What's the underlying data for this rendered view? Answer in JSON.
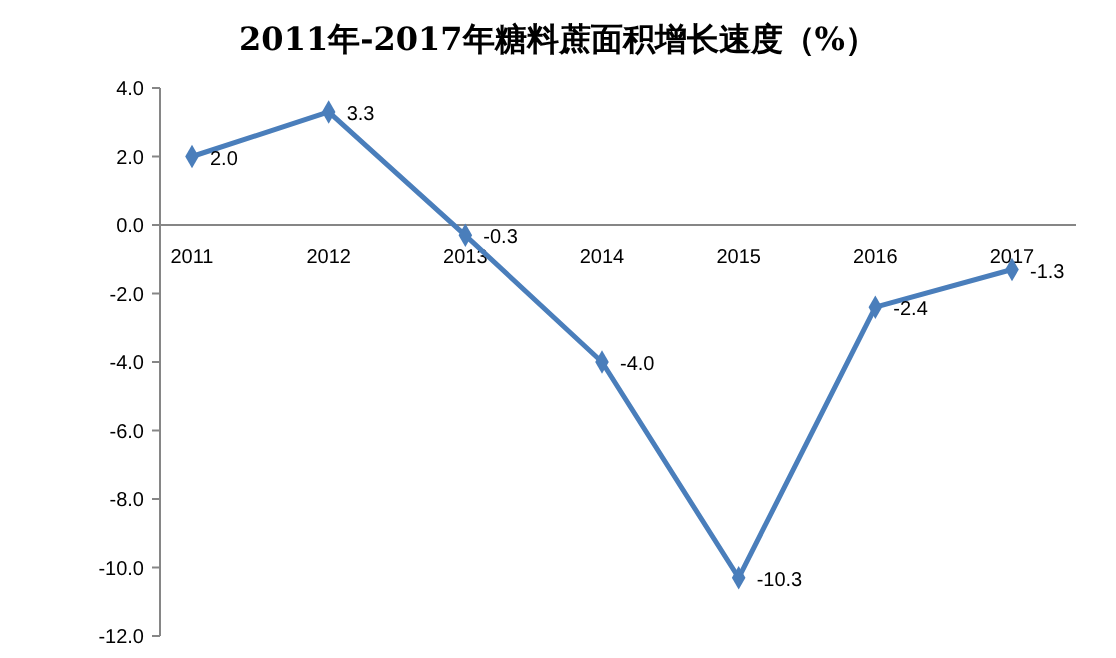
{
  "chart_data": {
    "type": "line",
    "title": "2011年-2017年糖料蔗面积增长速度（%）",
    "categories": [
      "2011",
      "2012",
      "2013",
      "2014",
      "2015",
      "2016",
      "2017"
    ],
    "series": [
      {
        "color": "#4a7ebb",
        "values": [
          2.0,
          3.3,
          -0.3,
          -4.0,
          -10.3,
          -2.4,
          -1.3
        ],
        "value_labels": [
          "2.0",
          "3.3",
          "-0.3",
          "-4.0",
          "-10.3",
          "-2.4",
          "-1.3"
        ]
      }
    ],
    "ylim": [
      -12,
      4
    ],
    "yticks": [
      {
        "value": 4,
        "label": "4.0"
      },
      {
        "value": 2,
        "label": "2.0"
      },
      {
        "value": 0,
        "label": "0.0"
      },
      {
        "value": -2,
        "label": "-2.0"
      },
      {
        "value": -4,
        "label": "-4.0"
      },
      {
        "value": -6,
        "label": "-6.0"
      },
      {
        "value": -8,
        "label": "-8.0"
      },
      {
        "value": -10,
        "label": "-10.0"
      },
      {
        "value": -12,
        "label": "-12.0"
      }
    ],
    "grid": false,
    "marker": "diamond",
    "line_style": "solid"
  }
}
